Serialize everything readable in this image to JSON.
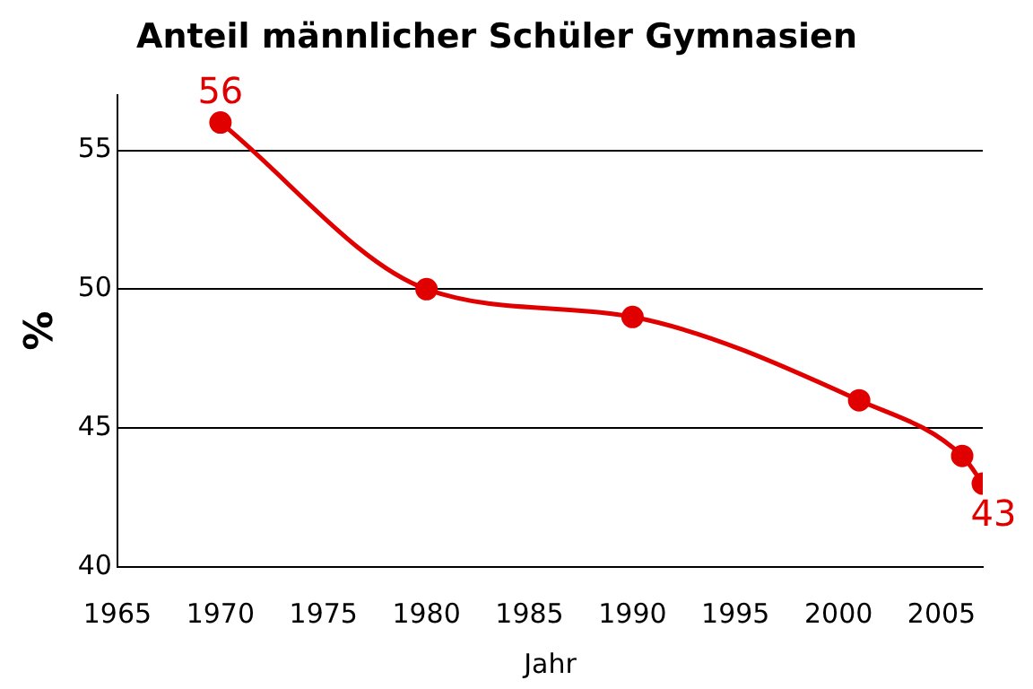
{
  "chart_data": {
    "type": "line",
    "title": "Anteil männlicher Schüler Gymnasien",
    "xlabel": "Jahr",
    "ylabel": "%",
    "x": [
      1970,
      1980,
      1990,
      2001,
      2006,
      2007
    ],
    "series": [
      {
        "color": "#e00000",
        "values": [
          56,
          50,
          49,
          46,
          44,
          43
        ],
        "value_labels": [
          "56",
          null,
          null,
          null,
          null,
          "43"
        ]
      }
    ],
    "xlim": [
      1965,
      2007
    ],
    "xticks": [
      1965,
      1970,
      1975,
      1980,
      1985,
      1990,
      1995,
      2000,
      2005
    ],
    "ylim": [
      40,
      57
    ],
    "yticks": [
      40,
      45,
      50,
      55
    ],
    "grid": "y",
    "legend": false,
    "marker": "circle",
    "line_style": "solid"
  }
}
